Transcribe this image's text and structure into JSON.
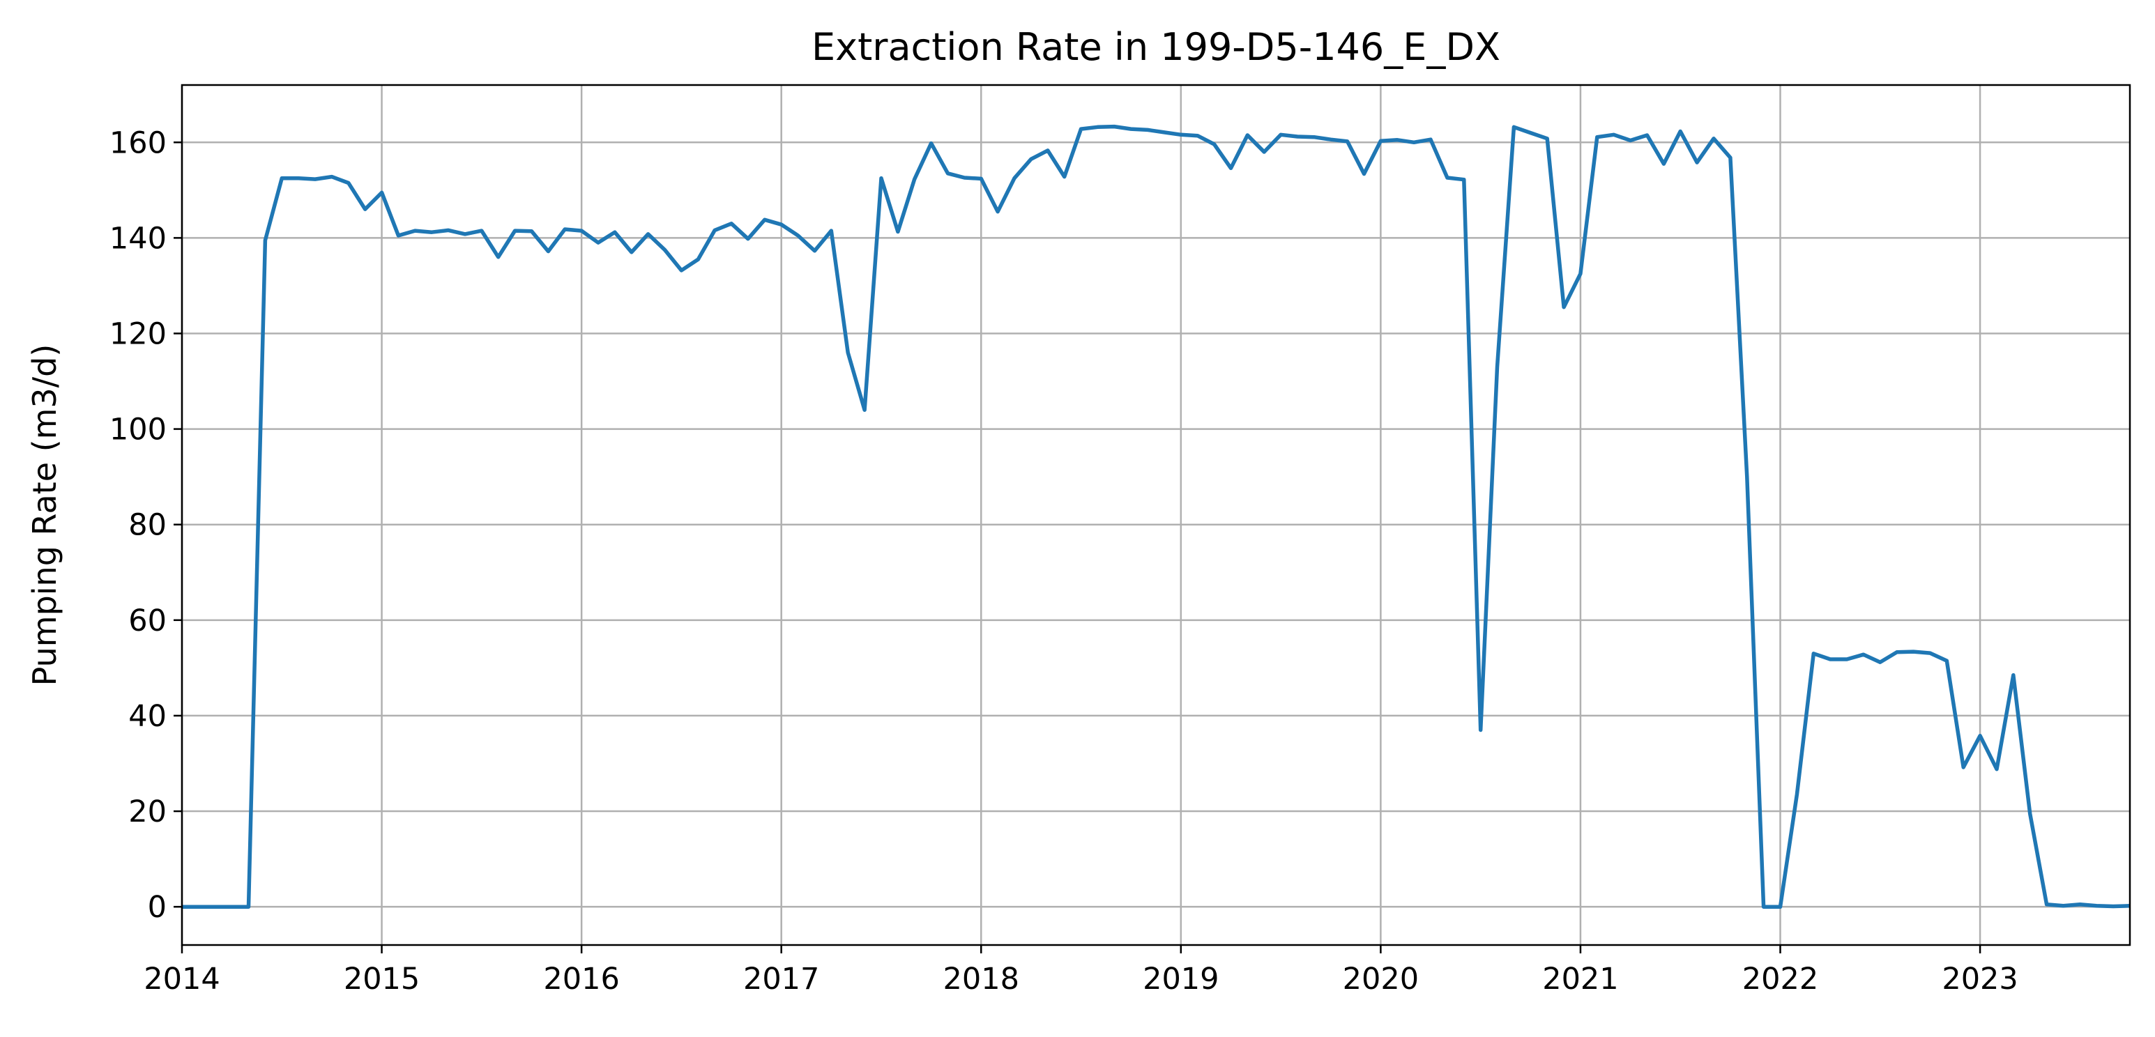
{
  "chart_data": {
    "type": "line",
    "title": "Extraction Rate in 199-D5-146_E_DX",
    "xlabel": "",
    "ylabel": "Pumping Rate (m3/d)",
    "xlim": [
      "2014-01",
      "2023-10"
    ],
    "ylim": [
      -8,
      172
    ],
    "grid": true,
    "x_ticks": [
      "2014",
      "2015",
      "2016",
      "2017",
      "2018",
      "2019",
      "2020",
      "2021",
      "2022",
      "2023"
    ],
    "y_ticks": [
      0,
      20,
      40,
      60,
      80,
      100,
      120,
      140,
      160
    ],
    "line_color": "#1f77b4",
    "series": [
      {
        "x": [
          "2014-01",
          "2014-02",
          "2014-03",
          "2014-04",
          "2014-05",
          "2014-06",
          "2014-07",
          "2014-08",
          "2014-09",
          "2014-10",
          "2014-11",
          "2014-12",
          "2015-01",
          "2015-02",
          "2015-03",
          "2015-04",
          "2015-05",
          "2015-06",
          "2015-07",
          "2015-08",
          "2015-09",
          "2015-10",
          "2015-11",
          "2015-12",
          "2016-01",
          "2016-02",
          "2016-03",
          "2016-04",
          "2016-05",
          "2016-06",
          "2016-07",
          "2016-08",
          "2016-09",
          "2016-10",
          "2016-11",
          "2016-12",
          "2017-01",
          "2017-02",
          "2017-03",
          "2017-04",
          "2017-05",
          "2017-06",
          "2017-07",
          "2017-08",
          "2017-09",
          "2017-10",
          "2017-11",
          "2017-12",
          "2018-01",
          "2018-02",
          "2018-03",
          "2018-04",
          "2018-05",
          "2018-06",
          "2018-07",
          "2018-08",
          "2018-09",
          "2018-10",
          "2018-11",
          "2018-12",
          "2019-01",
          "2019-02",
          "2019-03",
          "2019-04",
          "2019-05",
          "2019-06",
          "2019-07",
          "2019-08",
          "2019-09",
          "2019-10",
          "2019-11",
          "2019-12",
          "2020-01",
          "2020-02",
          "2020-03",
          "2020-04",
          "2020-05",
          "2020-06",
          "2020-07",
          "2020-08",
          "2020-09",
          "2020-10",
          "2020-11",
          "2020-12",
          "2021-01",
          "2021-02",
          "2021-03",
          "2021-04",
          "2021-05",
          "2021-06",
          "2021-07",
          "2021-08",
          "2021-09",
          "2021-10",
          "2021-11",
          "2021-12",
          "2022-01",
          "2022-02",
          "2022-03",
          "2022-04",
          "2022-05",
          "2022-06",
          "2022-07",
          "2022-08",
          "2022-09",
          "2022-10",
          "2022-11",
          "2022-12",
          "2023-01",
          "2023-02",
          "2023-03",
          "2023-04",
          "2023-05",
          "2023-06",
          "2023-07",
          "2023-08",
          "2023-09",
          "2023-10"
        ],
        "values": [
          0,
          0,
          0,
          0,
          0,
          139.5,
          152.5,
          152.5,
          152.3,
          152.8,
          151.5,
          146,
          149.5,
          140.5,
          141.5,
          141.2,
          141.6,
          140.8,
          141.5,
          136,
          141.5,
          141.4,
          137.2,
          141.8,
          141.5,
          139,
          141.2,
          137,
          140.8,
          137.5,
          133.2,
          135.5,
          141.6,
          143,
          139.8,
          143.8,
          142.8,
          140.5,
          137.3,
          141.5,
          116,
          104,
          152.5,
          141.3,
          152.3,
          159.8,
          153.5,
          152.6,
          152.4,
          145.5,
          152.5,
          156.5,
          158.3,
          152.8,
          162.8,
          163.2,
          163.3,
          162.8,
          162.6,
          162.1,
          161.6,
          161.4,
          159.6,
          154.6,
          161.5,
          158,
          161.6,
          161.2,
          161.1,
          160.6,
          160.2,
          153.4,
          160.3,
          160.5,
          160,
          160.6,
          152.6,
          152.2,
          37,
          113,
          163.2,
          162,
          160.8,
          125.5,
          132.5,
          161.1,
          161.6,
          160.4,
          161.5,
          155.5,
          162.3,
          155.8,
          160.8,
          156.8,
          90,
          0,
          0,
          23.5,
          53,
          51.8,
          51.8,
          52.8,
          51.2,
          53.3,
          53.4,
          53.1,
          51.5,
          29.2,
          35.8,
          28.8,
          48.5,
          19.5,
          0.5,
          0.2,
          0.5,
          0.2,
          0.1,
          0.2
        ]
      }
    ]
  }
}
